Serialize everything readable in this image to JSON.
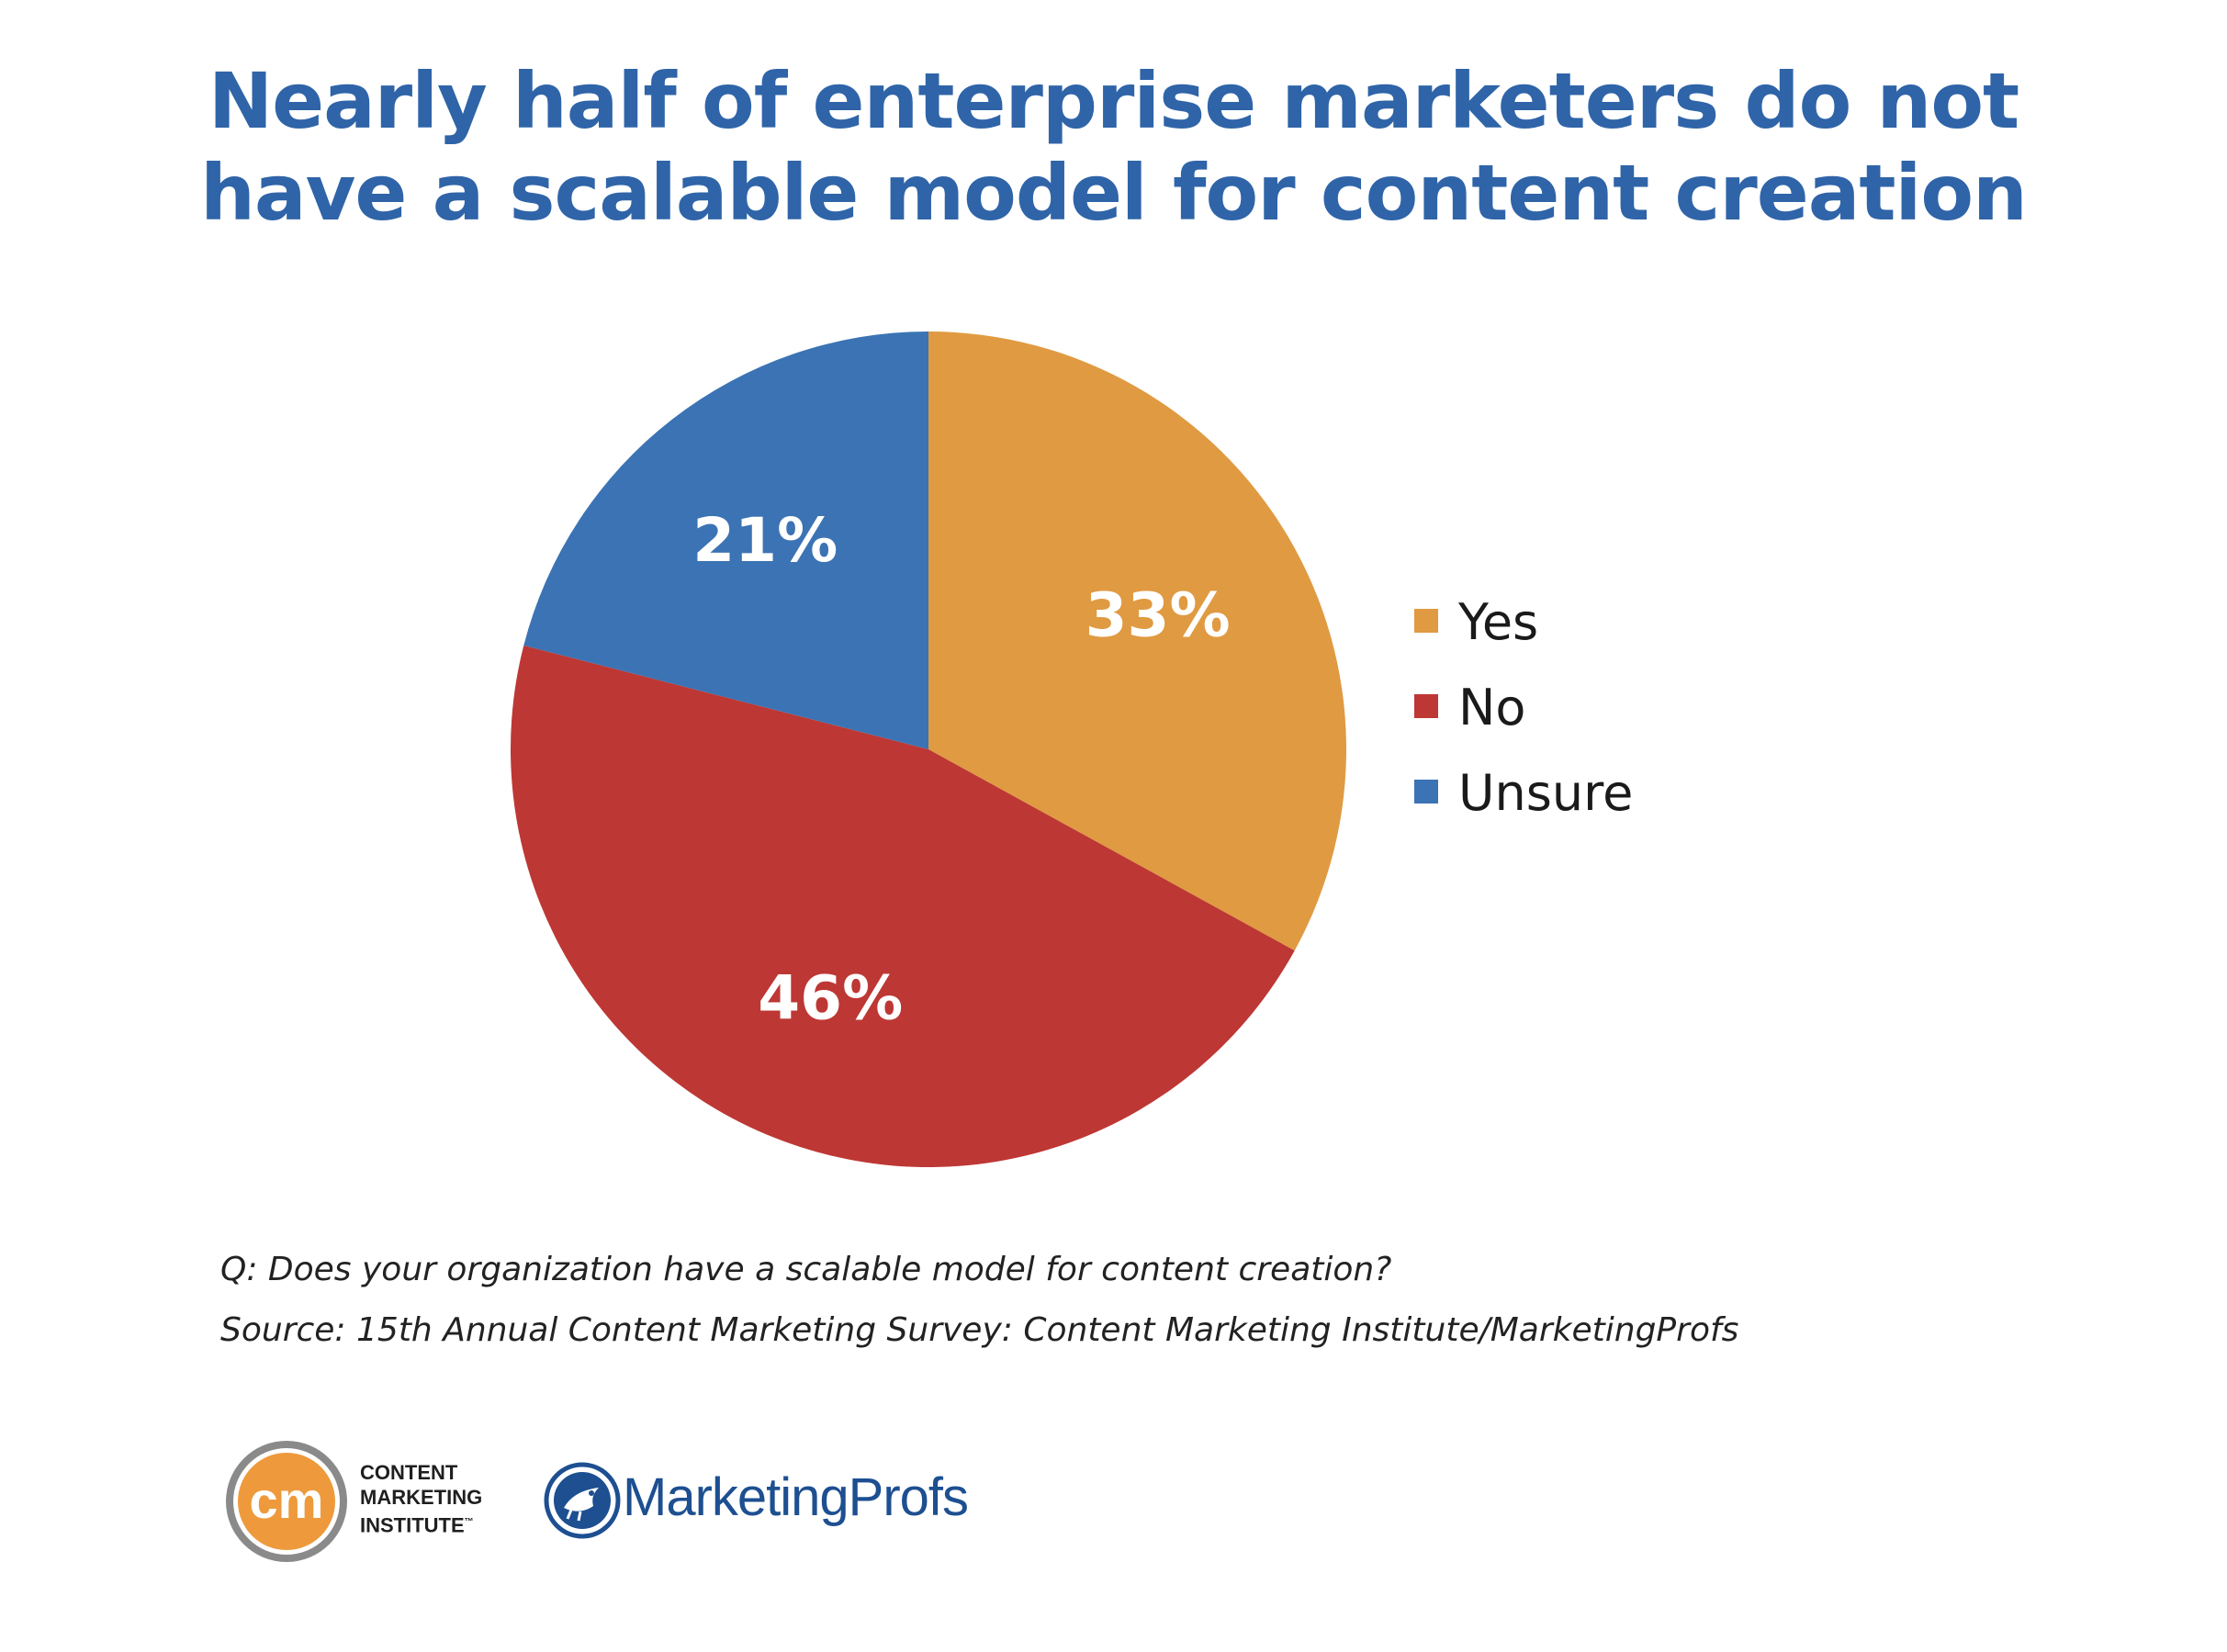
{
  "chart_data": {
    "type": "pie",
    "title_lines": [
      "Nearly half of enterprise marketers do not",
      "have a scalable model for content creation"
    ],
    "slices": [
      {
        "label": "Yes",
        "value": 33,
        "value_label": "33%",
        "color": "#e09a42"
      },
      {
        "label": "No",
        "value": 46,
        "value_label": "46%",
        "color": "#bd3734"
      },
      {
        "label": "Unsure",
        "value": 21,
        "value_label": "21%",
        "color": "#3b73b4"
      }
    ],
    "legend_position": "right"
  },
  "footnotes": {
    "question": "Q: Does your organization have a scalable model for content creation?",
    "source": "Source: 15th Annual Content Marketing Survey: Content Marketing Institute/MarketingProfs"
  },
  "logos": {
    "cmi_mark": "cm",
    "cmi_lines": [
      "CONTENT",
      "MARKETING",
      "INSTITUTE"
    ],
    "cmi_trademark": "™",
    "mp_name": "MarketingProfs"
  }
}
